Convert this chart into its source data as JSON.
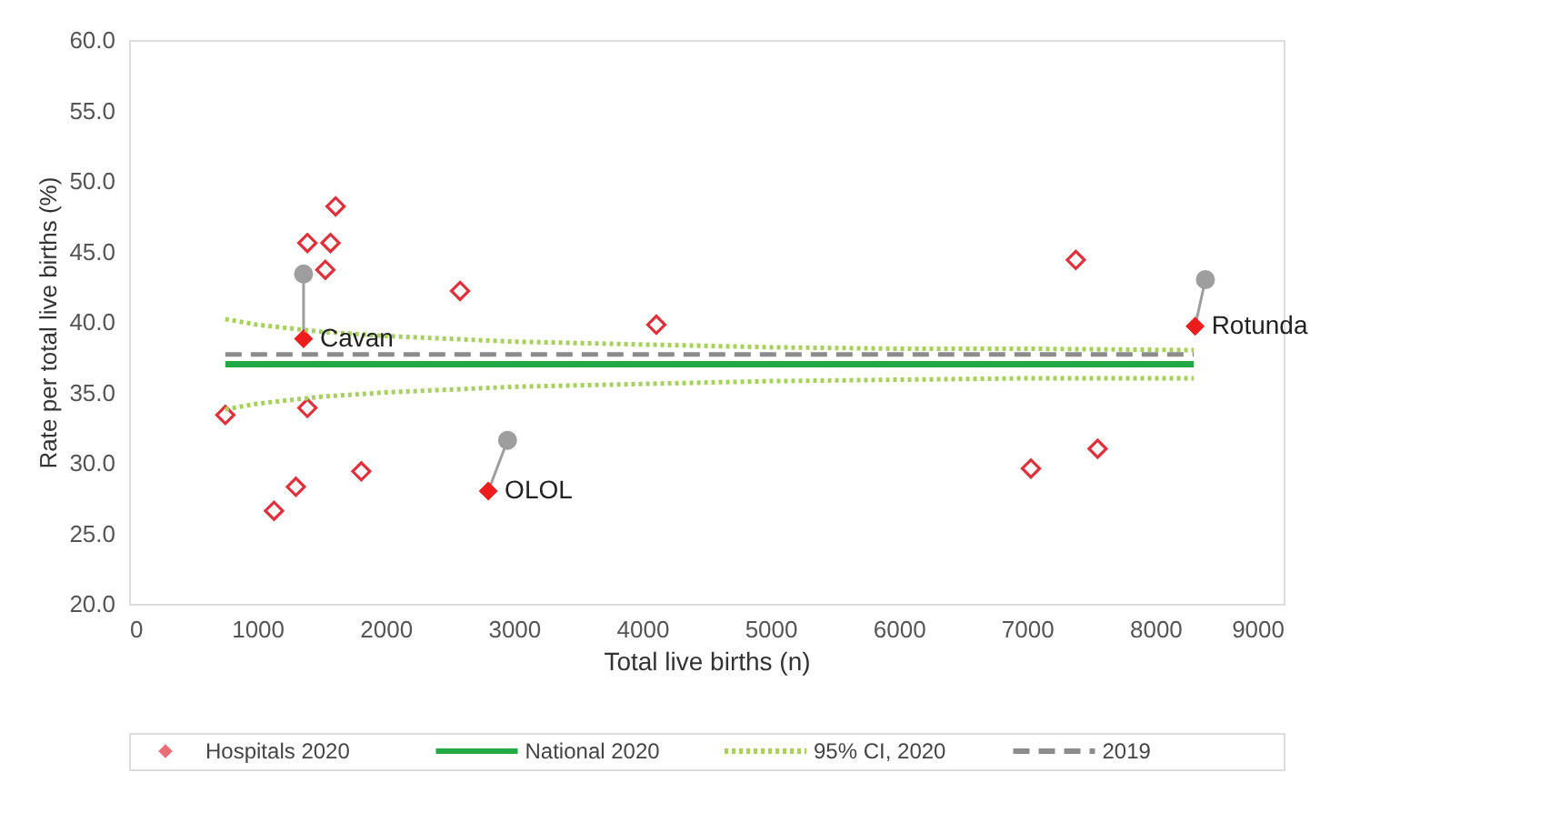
{
  "chart_data": {
    "type": "scatter",
    "xlabel": "Total live births (n)",
    "ylabel": "Rate per total live births (%)",
    "xlim": [
      0,
      9000
    ],
    "xticks": [
      0,
      1000,
      2000,
      3000,
      4000,
      5000,
      6000,
      7000,
      8000,
      9000
    ],
    "ylim": [
      20,
      60
    ],
    "yticks": [
      {
        "value": 20,
        "label": "20.0"
      },
      {
        "value": 25,
        "label": "25.0"
      },
      {
        "value": 30,
        "label": "30.0"
      },
      {
        "value": 35,
        "label": "35.0"
      },
      {
        "value": 40,
        "label": "40.0"
      },
      {
        "value": 45,
        "label": "45.0"
      },
      {
        "value": 50,
        "label": "50.0"
      },
      {
        "value": 55,
        "label": "55.0"
      },
      {
        "value": 60,
        "label": "60.0"
      }
    ],
    "grid": false,
    "legend": "bottom",
    "series": [
      {
        "name": "Hospitals 2020",
        "marker": "diamond",
        "color": "#e0303a",
        "x": [
          750,
          1130,
          1300,
          1390,
          1810,
          1610,
          1390,
          1570,
          1530,
          2580,
          4110,
          7380,
          7030,
          7550
        ],
        "values": [
          33.4,
          26.6,
          28.3,
          33.9,
          29.4,
          48.2,
          45.6,
          45.6,
          43.7,
          42.2,
          39.8,
          44.4,
          29.6,
          31.0
        ]
      },
      {
        "type": "line",
        "line_style": "solid",
        "color": "#9e9e9e",
        "x": [
          1360,
          1360
        ],
        "values": [
          38.8,
          43.4
        ]
      },
      {
        "type": "line",
        "line_style": "solid",
        "color": "#9e9e9e",
        "x": [
          2800,
          2950
        ],
        "values": [
          28.0,
          31.6
        ]
      },
      {
        "type": "line",
        "line_style": "solid",
        "color": "#9e9e9e",
        "x": [
          8310,
          8390
        ],
        "values": [
          39.7,
          43.0
        ]
      },
      {
        "marker": "circle",
        "color": "#9e9e9e",
        "x": [
          1360,
          2950,
          8390
        ],
        "values": [
          43.4,
          31.6,
          43.0
        ]
      },
      {
        "marker": "diamond",
        "color": "#ee1c1c",
        "x": [
          1360,
          2800,
          8310
        ],
        "values": [
          38.8,
          28.0,
          39.7
        ]
      },
      {
        "name": "National 2020",
        "type": "line",
        "line_style": "solid",
        "color": "#22a845",
        "x": [
          750,
          8300
        ],
        "values": [
          37.0,
          37.0
        ]
      },
      {
        "name": "95% CI, 2020",
        "type": "line",
        "line_style": "dotted",
        "color": "#a8d05a",
        "x": [
          750,
          1000,
          1500,
          2000,
          3000,
          4000,
          5000,
          6000,
          7000,
          8300
        ],
        "values": [
          40.2,
          39.8,
          39.3,
          39.0,
          38.6,
          38.4,
          38.2,
          38.1,
          38.1,
          38.0
        ]
      },
      {
        "type": "line",
        "line_style": "dotted",
        "color": "#a8d05a",
        "x": [
          750,
          1000,
          1500,
          2000,
          3000,
          4000,
          5000,
          6000,
          7000,
          8300
        ],
        "values": [
          33.8,
          34.2,
          34.7,
          35.0,
          35.4,
          35.6,
          35.8,
          35.9,
          36.0,
          36.0
        ]
      },
      {
        "name": "2019",
        "type": "line",
        "line_style": "dashed",
        "color": "#8c8c8c",
        "x": [
          750,
          8300
        ],
        "values": [
          37.7,
          37.7
        ]
      }
    ],
    "annotations": [
      {
        "text": "Cavan",
        "x": 1360,
        "y": 38.8
      },
      {
        "text": "OLOL",
        "x": 2800,
        "y": 28.0
      },
      {
        "text": "Rotunda",
        "x": 8310,
        "y": 39.7
      }
    ]
  }
}
